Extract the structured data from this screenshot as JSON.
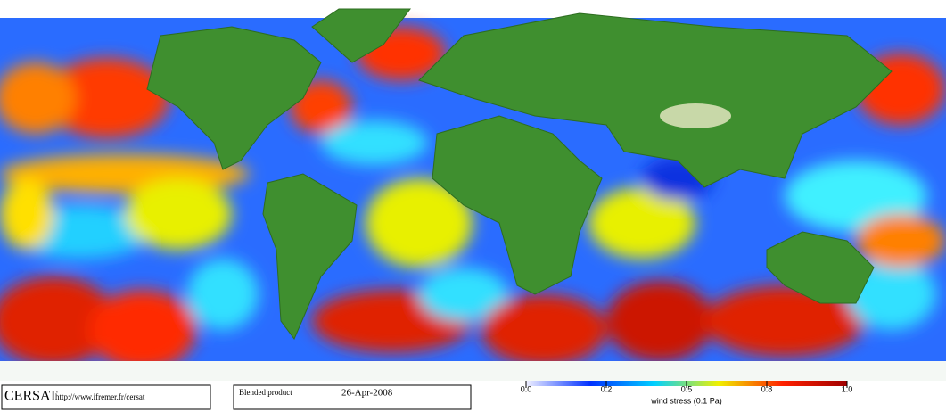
{
  "footer": {
    "logo": "CERSAT",
    "url": "http://www.ifremer.fr/cersat",
    "product": "Blended product",
    "date": "26-Apr-2008"
  },
  "colorbar": {
    "label": "wind stress (0.1 Pa)",
    "ticks": [
      {
        "value": 0,
        "label": "0.0"
      },
      0.2,
      0.5,
      0.8,
      {
        "value": 1,
        "label": "1.0"
      }
    ],
    "colors": [
      "#f0f0ff",
      "#0030ff",
      "#00d0ff",
      "#f0f000",
      "#ff2000",
      "#a00000"
    ]
  }
}
